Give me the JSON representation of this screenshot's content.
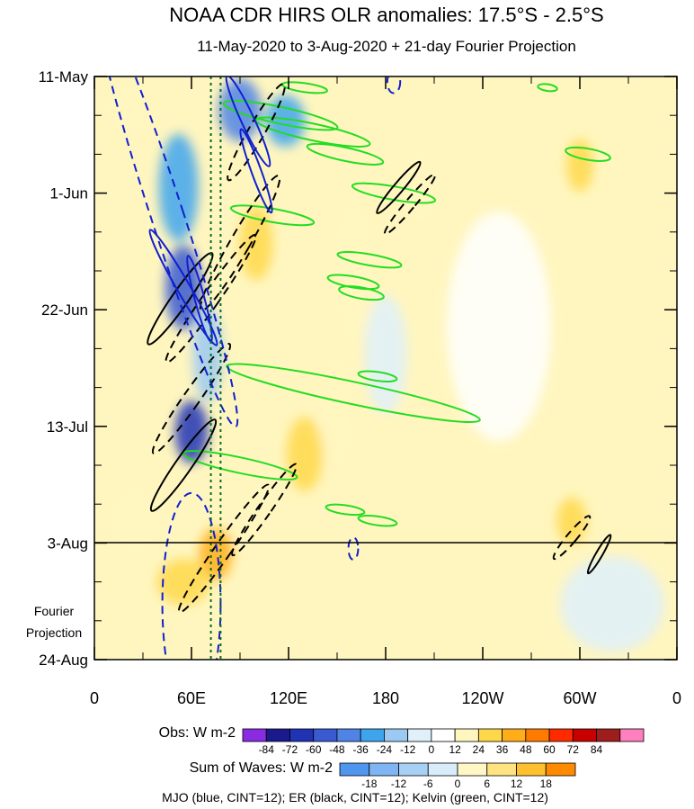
{
  "colors": {
    "obs": [
      "#8a2be2",
      "#1a1a8c",
      "#1f33b4",
      "#3a5ad0",
      "#4f83e6",
      "#3fa4ee",
      "#9cc9f2",
      "#dff0fa",
      "#ffffff",
      "#fff6bf",
      "#ffd84a",
      "#ffae1a",
      "#ff7a00",
      "#ff2a00",
      "#c80000",
      "#9e1e1e",
      "#ff7fbf"
    ],
    "sum": [
      "#4f96ef",
      "#7fb5f2",
      "#a8d0f4",
      "#d8ecfa",
      "#fff7c6",
      "#ffe380",
      "#ffc030",
      "#ff8a00"
    ],
    "mjo": "#1020d0",
    "er": "#000000",
    "kelvin": "#22dd22",
    "dotted_lines": "#0a6a2a"
  },
  "chart_data": {
    "type": "heatmap",
    "title": "NOAA CDR HIRS OLR anomalies: 17.5°S - 2.5°S",
    "subtitle": "11-May-2020 to 3-Aug-2020 + 21-day Fourier Projection",
    "x_ticks": [
      "0",
      "60E",
      "120E",
      "180",
      "120W",
      "60W",
      "0"
    ],
    "x_range_deg": [
      0,
      360
    ],
    "y_ticks": [
      "11-May",
      "1-Jun",
      "22-Jun",
      "13-Jul",
      "3-Aug",
      "24-Aug"
    ],
    "y_range_days": [
      0,
      105
    ],
    "observation_end": "3-Aug",
    "projection_label_line1": "Fourier",
    "projection_label_line2": "Projection",
    "obs_colorbar": {
      "label": "Obs: W m-2",
      "ticks": [
        "-84",
        "-72",
        "-60",
        "-48",
        "-36",
        "-24",
        "-12",
        "0",
        "12",
        "24",
        "36",
        "48",
        "60",
        "72",
        "84"
      ]
    },
    "sum_colorbar": {
      "label": "Sum of Waves: W m-2",
      "ticks": [
        "-18",
        "-12",
        "-6",
        "0",
        "6",
        "12",
        "18"
      ]
    },
    "footnote": "MJO (blue, CINT=12); ER (black, CINT=12); Kelvin (green, CINT=12)",
    "dotted_lines_lon": [
      72,
      78
    ],
    "anomaly_blobs": [
      {
        "lon": 55,
        "day": 38,
        "w": 18,
        "h": 14,
        "v": -60
      },
      {
        "lon": 60,
        "day": 64,
        "w": 16,
        "h": 10,
        "v": -72
      },
      {
        "lon": 52,
        "day": 20,
        "w": 20,
        "h": 18,
        "v": -36
      },
      {
        "lon": 90,
        "day": 6,
        "w": 22,
        "h": 10,
        "v": -48
      },
      {
        "lon": 118,
        "day": 8,
        "w": 20,
        "h": 8,
        "v": -36
      },
      {
        "lon": 70,
        "day": 50,
        "w": 14,
        "h": 16,
        "v": -24
      },
      {
        "lon": 100,
        "day": 30,
        "w": 16,
        "h": 12,
        "v": 24
      },
      {
        "lon": 75,
        "day": 86,
        "w": 16,
        "h": 8,
        "v": 36
      },
      {
        "lon": 55,
        "day": 91,
        "w": 28,
        "h": 7,
        "v": 24
      },
      {
        "lon": 300,
        "day": 16,
        "w": 12,
        "h": 8,
        "v": 24
      },
      {
        "lon": 295,
        "day": 80,
        "w": 14,
        "h": 7,
        "v": 24
      },
      {
        "lon": 160,
        "day": 35,
        "w": 20,
        "h": 25,
        "v": 12
      },
      {
        "lon": 180,
        "day": 50,
        "w": 22,
        "h": 20,
        "v": -12
      },
      {
        "lon": 20,
        "day": 6,
        "w": 22,
        "h": 8,
        "v": 12
      },
      {
        "lon": 25,
        "day": 80,
        "w": 30,
        "h": 10,
        "v": 12
      },
      {
        "lon": 320,
        "day": 95,
        "w": 60,
        "h": 16,
        "v": -12
      },
      {
        "lon": 250,
        "day": 45,
        "w": 60,
        "h": 40,
        "v": -6
      },
      {
        "lon": 150,
        "day": 60,
        "w": 18,
        "h": 20,
        "v": 12
      },
      {
        "lon": 130,
        "day": 68,
        "w": 18,
        "h": 12,
        "v": 24
      },
      {
        "lon": 200,
        "day": 20,
        "w": 18,
        "h": 12,
        "v": 12
      }
    ],
    "mjo_contours": [
      {
        "lon": 95,
        "day": 8,
        "rx": 4,
        "ry": 9,
        "rot": -25,
        "dash": false
      },
      {
        "lon": 100,
        "day": 17,
        "rx": 3,
        "ry": 8,
        "rot": -20,
        "dash": false
      },
      {
        "lon": 55,
        "day": 38,
        "rx": 4,
        "ry": 12,
        "rot": -30,
        "dash": false
      },
      {
        "lon": 45,
        "day": 25,
        "rx": 10,
        "ry": 40,
        "rot": -18,
        "dash": true
      },
      {
        "lon": 65,
        "day": 40,
        "rx": 3,
        "ry": 8,
        "rot": -15,
        "dash": false
      },
      {
        "lon": 60,
        "day": 95,
        "rx": 18,
        "ry": 20,
        "rot": 0,
        "dash": true
      },
      {
        "lon": 160,
        "day": 85,
        "rx": 3,
        "ry": 2,
        "rot": 0,
        "dash": true
      },
      {
        "lon": 185,
        "day": 1,
        "rx": 4,
        "ry": 2,
        "rot": 0,
        "dash": true
      }
    ],
    "er_contours": [
      {
        "lon": 100,
        "day": 10,
        "rx": 5,
        "ry": 10,
        "rot": 30,
        "dash": true
      },
      {
        "lon": 90,
        "day": 30,
        "rx": 6,
        "ry": 14,
        "rot": 30,
        "dash": true
      },
      {
        "lon": 53,
        "day": 40,
        "rx": 5,
        "ry": 10,
        "rot": 35,
        "dash": false
      },
      {
        "lon": 72,
        "day": 40,
        "rx": 5,
        "ry": 14,
        "rot": 35,
        "dash": true
      },
      {
        "lon": 60,
        "day": 58,
        "rx": 5,
        "ry": 12,
        "rot": 35,
        "dash": true
      },
      {
        "lon": 55,
        "day": 70,
        "rx": 5,
        "ry": 10,
        "rot": 35,
        "dash": false
      },
      {
        "lon": 80,
        "day": 85,
        "rx": 5,
        "ry": 14,
        "rot": 35,
        "dash": true
      },
      {
        "lon": 105,
        "day": 78,
        "rx": 4,
        "ry": 10,
        "rot": 35,
        "dash": true
      },
      {
        "lon": 188,
        "day": 20,
        "rx": 3,
        "ry": 6,
        "rot": 40,
        "dash": false
      },
      {
        "lon": 195,
        "day": 23,
        "rx": 3,
        "ry": 7,
        "rot": 40,
        "dash": true
      },
      {
        "lon": 295,
        "day": 83,
        "rx": 3,
        "ry": 5,
        "rot": 40,
        "dash": true
      },
      {
        "lon": 312,
        "day": 86,
        "rx": 2,
        "ry": 4,
        "rot": 30,
        "dash": false
      }
    ],
    "kelvin_contours": [
      {
        "lon": 115,
        "day": 7,
        "rx": 36,
        "ry": 1.5,
        "rot": 12
      },
      {
        "lon": 135,
        "day": 10,
        "rx": 36,
        "ry": 1.5,
        "rot": 12
      },
      {
        "lon": 155,
        "day": 14,
        "rx": 24,
        "ry": 1.2,
        "rot": 12
      },
      {
        "lon": 110,
        "day": 25,
        "rx": 26,
        "ry": 1.2,
        "rot": 10
      },
      {
        "lon": 185,
        "day": 21,
        "rx": 26,
        "ry": 1.2,
        "rot": 10
      },
      {
        "lon": 170,
        "day": 33,
        "rx": 20,
        "ry": 1.0,
        "rot": 10
      },
      {
        "lon": 160,
        "day": 37,
        "rx": 16,
        "ry": 1.0,
        "rot": 10
      },
      {
        "lon": 165,
        "day": 39,
        "rx": 14,
        "ry": 1.0,
        "rot": 10
      },
      {
        "lon": 175,
        "day": 54,
        "rx": 12,
        "ry": 0.8,
        "rot": 8
      },
      {
        "lon": 160,
        "day": 57,
        "rx": 80,
        "ry": 2.0,
        "rot": 12
      },
      {
        "lon": 90,
        "day": 70,
        "rx": 36,
        "ry": 1.4,
        "rot": 12
      },
      {
        "lon": 155,
        "day": 78,
        "rx": 12,
        "ry": 0.8,
        "rot": 8
      },
      {
        "lon": 175,
        "day": 80,
        "rx": 12,
        "ry": 0.8,
        "rot": 8
      },
      {
        "lon": 305,
        "day": 14,
        "rx": 14,
        "ry": 1.0,
        "rot": 10
      },
      {
        "lon": 280,
        "day": 2,
        "rx": 6,
        "ry": 0.6,
        "rot": 8
      },
      {
        "lon": 130,
        "day": 2,
        "rx": 14,
        "ry": 0.8,
        "rot": 8
      }
    ]
  }
}
